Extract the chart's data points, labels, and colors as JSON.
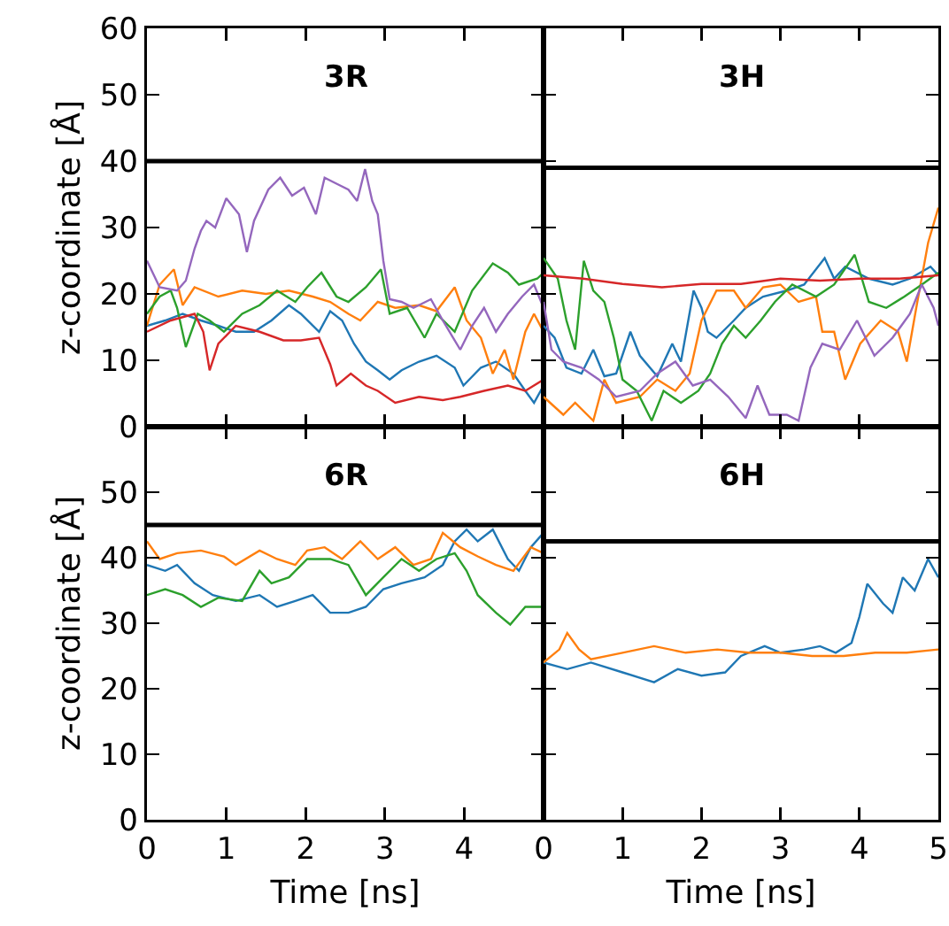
{
  "chart_data": [
    {
      "type": "line",
      "title": "3R",
      "ylabel": "z-coordinate [Å]",
      "xlim": [
        0,
        5
      ],
      "xticks": [
        0,
        1,
        2,
        3,
        4
      ],
      "ylim": [
        0,
        60
      ],
      "yticks": [
        0,
        10,
        20,
        30,
        40,
        50,
        60
      ],
      "tick_labels": "y",
      "grid": false,
      "ref_lines": [
        {
          "axis": "y",
          "value": 40,
          "color": "#000000"
        }
      ],
      "series": [
        {
          "color": "#1f77b4",
          "x": [
            0,
            0.23,
            0.45,
            0.68,
            0.9,
            1.12,
            1.35,
            1.57,
            1.79,
            1.94,
            2.17,
            2.31,
            2.46,
            2.61,
            2.76,
            2.91,
            3.06,
            3.21,
            3.43,
            3.65,
            3.88,
            3.99,
            4.21,
            4.4,
            4.62,
            4.77,
            4.88,
            5
          ],
          "values": [
            15.2,
            16,
            17,
            16,
            15.2,
            14.3,
            14.3,
            16,
            18.3,
            17,
            14.3,
            17.4,
            16,
            12.5,
            9.8,
            8.5,
            7.1,
            8.5,
            9.8,
            10.7,
            8.9,
            6.2,
            8.9,
            9.8,
            8,
            5.4,
            3.6,
            6.2
          ]
        },
        {
          "color": "#ff7f0e",
          "x": [
            0,
            0.16,
            0.34,
            0.45,
            0.6,
            0.9,
            1.2,
            1.5,
            1.79,
            2.09,
            2.31,
            2.54,
            2.69,
            2.91,
            3.13,
            3.43,
            3.65,
            3.88,
            4.03,
            4.21,
            4.36,
            4.51,
            4.62,
            4.77,
            4.88,
            5
          ],
          "values": [
            15.2,
            21.4,
            23.7,
            18.3,
            21,
            19.6,
            20.5,
            20,
            20.5,
            19.6,
            18.8,
            17,
            16,
            18.8,
            17.9,
            18.3,
            17.4,
            21,
            16,
            13.4,
            8,
            11.6,
            7.1,
            14.3,
            17,
            14.3
          ]
        },
        {
          "color": "#2ca02c",
          "x": [
            0,
            0.16,
            0.3,
            0.38,
            0.49,
            0.64,
            0.79,
            0.97,
            1.2,
            1.42,
            1.64,
            1.87,
            2.02,
            2.2,
            2.39,
            2.54,
            2.76,
            2.95,
            3.06,
            3.28,
            3.5,
            3.65,
            3.88,
            4.1,
            4.36,
            4.55,
            4.69,
            4.92,
            5
          ],
          "values": [
            17,
            19.6,
            20.5,
            17.9,
            12,
            17,
            16,
            14.3,
            17,
            18.3,
            20.5,
            18.8,
            21,
            23.2,
            19.6,
            18.8,
            21,
            23.7,
            17,
            17.9,
            13.4,
            17,
            14.3,
            20.5,
            24.6,
            23.2,
            21.4,
            22.3,
            23.2
          ]
        },
        {
          "color": "#d62728",
          "x": [
            0,
            0.3,
            0.6,
            0.71,
            0.79,
            0.9,
            1.12,
            1.42,
            1.72,
            1.94,
            2.17,
            2.31,
            2.39,
            2.57,
            2.76,
            2.91,
            3.13,
            3.43,
            3.73,
            3.95,
            4.25,
            4.55,
            4.77,
            5
          ],
          "values": [
            14.3,
            16,
            17,
            14.3,
            8.5,
            12.5,
            15.2,
            14.3,
            13,
            13,
            13.4,
            9.4,
            6.2,
            8,
            6.2,
            5.4,
            3.6,
            4.5,
            4,
            4.5,
            5.4,
            6.2,
            5.4,
            7.1
          ]
        },
        {
          "color": "#9467bd",
          "x": [
            0,
            0.16,
            0.38,
            0.49,
            0.6,
            0.68,
            0.75,
            0.86,
            1.0,
            1.16,
            1.26,
            1.35,
            1.53,
            1.68,
            1.83,
            1.98,
            2.13,
            2.24,
            2.39,
            2.54,
            2.65,
            2.75,
            2.84,
            2.91,
            2.98,
            3.06,
            3.21,
            3.36,
            3.58,
            3.73,
            3.95,
            4.1,
            4.25,
            4.4,
            4.55,
            4.73,
            4.88,
            5
          ],
          "values": [
            25,
            21,
            20.5,
            22,
            26.8,
            29.5,
            31,
            30,
            34.4,
            32,
            26.3,
            31,
            35.7,
            37.5,
            34.8,
            36,
            32,
            37.5,
            36.6,
            35.7,
            34,
            38.8,
            34,
            32,
            25,
            19.2,
            18.8,
            17.9,
            19.2,
            16,
            11.6,
            15.2,
            17.9,
            14.3,
            17,
            19.6,
            21.4,
            17.9
          ]
        }
      ]
    },
    {
      "type": "line",
      "title": "3H",
      "xlim": [
        0,
        5
      ],
      "xticks": [
        0,
        1,
        2,
        3,
        4,
        5
      ],
      "ylim": [
        0,
        60
      ],
      "yticks": [
        0,
        10,
        20,
        30,
        40,
        50,
        60
      ],
      "tick_labels": false,
      "grid": false,
      "ref_lines": [
        {
          "axis": "y",
          "value": 39,
          "color": "#000000"
        }
      ],
      "series": [
        {
          "color": "#1f77b4",
          "x": [
            0,
            0.14,
            0.29,
            0.48,
            0.63,
            0.77,
            0.92,
            1.1,
            1.22,
            1.44,
            1.63,
            1.74,
            1.9,
            2.0,
            2.08,
            2.19,
            2.41,
            2.56,
            2.78,
            3.08,
            3.3,
            3.56,
            3.68,
            3.82,
            4.12,
            4.42,
            4.64,
            4.9,
            5
          ],
          "values": [
            15.2,
            13.4,
            8.9,
            8,
            11.6,
            7.6,
            8,
            14.3,
            10.7,
            7.6,
            12.5,
            9.8,
            20.5,
            17.9,
            14.3,
            13.4,
            16,
            17.9,
            19.6,
            20.5,
            21.4,
            25.4,
            22.3,
            24.1,
            22.3,
            21.4,
            22.3,
            24.1,
            22.8
          ]
        },
        {
          "color": "#ff7f0e",
          "x": [
            0,
            0.25,
            0.4,
            0.63,
            0.77,
            0.92,
            1.22,
            1.44,
            1.67,
            1.85,
            2.0,
            2.19,
            2.41,
            2.56,
            2.78,
            3.0,
            3.23,
            3.45,
            3.53,
            3.68,
            3.82,
            4.01,
            4.27,
            4.49,
            4.6,
            4.72,
            4.87,
            5
          ],
          "values": [
            4.5,
            1.8,
            3.6,
            0.9,
            7.1,
            3.6,
            4.5,
            7.1,
            5.4,
            8,
            16,
            20.5,
            20.5,
            17.9,
            21,
            21.4,
            18.8,
            19.6,
            14.3,
            14.3,
            7.1,
            12.5,
            16,
            14.3,
            9.8,
            17.9,
            27.7,
            33
          ]
        },
        {
          "color": "#2ca02c",
          "x": [
            0,
            0.18,
            0.29,
            0.4,
            0.51,
            0.63,
            0.77,
            0.89,
            1.0,
            1.18,
            1.37,
            1.52,
            1.74,
            1.96,
            2.11,
            2.26,
            2.41,
            2.56,
            2.75,
            2.93,
            3.15,
            3.45,
            3.68,
            3.94,
            4.12,
            4.34,
            4.57,
            4.79,
            5
          ],
          "values": [
            25.4,
            22.3,
            16,
            11.6,
            25,
            20.5,
            18.8,
            13.4,
            7.1,
            5.4,
            0.9,
            5.4,
            3.6,
            5.4,
            8,
            12.5,
            15.2,
            13.4,
            16,
            18.8,
            21.4,
            19.6,
            21.4,
            25.9,
            18.8,
            17.9,
            19.6,
            21.4,
            23.2
          ]
        },
        {
          "color": "#d62728",
          "x": [
            0,
            0.5,
            1,
            1.5,
            2,
            2.5,
            3,
            3.5,
            4,
            4.5,
            5
          ],
          "values": [
            22.8,
            22.3,
            21.5,
            21,
            21.5,
            21.5,
            22.3,
            22,
            22.3,
            22.3,
            22.8
          ]
        },
        {
          "color": "#9467bd",
          "x": [
            0,
            0.1,
            0.25,
            0.48,
            0.7,
            0.92,
            1.22,
            1.44,
            1.67,
            1.89,
            2.11,
            2.34,
            2.56,
            2.71,
            2.86,
            3.08,
            3.23,
            3.38,
            3.53,
            3.75,
            3.97,
            4.19,
            4.42,
            4.64,
            4.79,
            4.94,
            5
          ],
          "values": [
            18.8,
            11.6,
            9.8,
            8.9,
            7.1,
            4.5,
            5.4,
            8,
            9.8,
            6.2,
            7.1,
            4.5,
            1.3,
            6.2,
            1.8,
            1.8,
            0.9,
            8.9,
            12.5,
            11.6,
            16,
            10.7,
            13.4,
            17,
            21.4,
            17.9,
            15.2
          ]
        }
      ]
    },
    {
      "type": "line",
      "title": "6R",
      "xlabel": "Time [ns]",
      "ylabel": "z-coordinate [Å]",
      "xlim": [
        0,
        5
      ],
      "xticks": [
        0,
        1,
        2,
        3,
        4
      ],
      "ylim": [
        0,
        60
      ],
      "yticks": [
        0,
        10,
        20,
        30,
        40,
        50
      ],
      "grid": false,
      "ref_lines": [
        {
          "axis": "y",
          "value": 45,
          "color": "#000000"
        }
      ],
      "series": [
        {
          "color": "#1f77b4",
          "x": [
            0,
            0.23,
            0.38,
            0.6,
            0.83,
            1.12,
            1.42,
            1.64,
            1.87,
            2.09,
            2.31,
            2.54,
            2.76,
            2.98,
            3.21,
            3.5,
            3.73,
            3.88,
            4.03,
            4.17,
            4.36,
            4.55,
            4.69,
            4.84,
            5
          ],
          "values": [
            38.9,
            38,
            38.9,
            36.1,
            34.3,
            33.4,
            34.3,
            32.5,
            33.4,
            34.3,
            31.6,
            31.6,
            32.5,
            35.2,
            36.1,
            37,
            38.9,
            42.5,
            44.3,
            42.5,
            44.3,
            39.8,
            38,
            41.6,
            43.8
          ]
        },
        {
          "color": "#ff7f0e",
          "x": [
            0,
            0.16,
            0.38,
            0.68,
            0.97,
            1.12,
            1.42,
            1.64,
            1.87,
            2.02,
            2.24,
            2.46,
            2.69,
            2.91,
            3.13,
            3.36,
            3.58,
            3.73,
            3.95,
            4.17,
            4.4,
            4.62,
            4.84,
            5
          ],
          "values": [
            42.5,
            39.8,
            40.7,
            41.1,
            40.2,
            38.9,
            41.1,
            39.8,
            38.9,
            41.1,
            41.6,
            39.8,
            42.5,
            39.8,
            41.6,
            38.9,
            39.8,
            43.8,
            41.6,
            40.2,
            38.9,
            38,
            41.6,
            40.7
          ]
        },
        {
          "color": "#2ca02c",
          "x": [
            0,
            0.23,
            0.45,
            0.68,
            0.9,
            1.2,
            1.42,
            1.57,
            1.79,
            2.02,
            2.31,
            2.54,
            2.76,
            2.98,
            3.21,
            3.43,
            3.65,
            3.88,
            4.03,
            4.17,
            4.4,
            4.58,
            4.77,
            5
          ],
          "values": [
            34.3,
            35.2,
            34.3,
            32.5,
            33.9,
            33.4,
            38,
            36.1,
            37,
            39.8,
            39.8,
            38.9,
            34.3,
            37,
            39.8,
            38,
            39.8,
            40.7,
            38,
            34.3,
            31.6,
            29.8,
            32.5,
            32.5
          ]
        }
      ]
    },
    {
      "type": "line",
      "title": "6H",
      "xlabel": "Time [ns]",
      "xlim": [
        0,
        5
      ],
      "xticks": [
        0,
        1,
        2,
        3,
        4,
        5
      ],
      "ylim": [
        0,
        60
      ],
      "yticks": [
        0,
        10,
        20,
        30,
        40,
        50,
        60
      ],
      "tick_labels": "x",
      "grid": false,
      "ref_lines": [
        {
          "axis": "y",
          "value": 42.5,
          "color": "#000000"
        }
      ],
      "series": [
        {
          "color": "#1f77b4",
          "x": [
            0,
            0.3,
            0.6,
            1,
            1.4,
            1.7,
            2,
            2.3,
            2.5,
            2.8,
            3,
            3.3,
            3.5,
            3.7,
            3.9,
            4.0,
            4.1,
            4.3,
            4.42,
            4.55,
            4.7,
            4.87,
            5
          ],
          "values": [
            24,
            23,
            24,
            22.5,
            21,
            23,
            22,
            22.5,
            25,
            26.5,
            25.5,
            26,
            26.5,
            25.5,
            27,
            31,
            36,
            33,
            31.6,
            37,
            35,
            39.8,
            37
          ]
        },
        {
          "color": "#ff7f0e",
          "x": [
            0,
            0.2,
            0.3,
            0.45,
            0.6,
            1,
            1.4,
            1.8,
            2.2,
            2.6,
            3,
            3.4,
            3.8,
            4.2,
            4.6,
            5
          ],
          "values": [
            24,
            26,
            28.5,
            26,
            24.5,
            25.5,
            26.5,
            25.5,
            26,
            25.5,
            25.5,
            25,
            25,
            25.5,
            25.5,
            26
          ]
        }
      ]
    }
  ]
}
